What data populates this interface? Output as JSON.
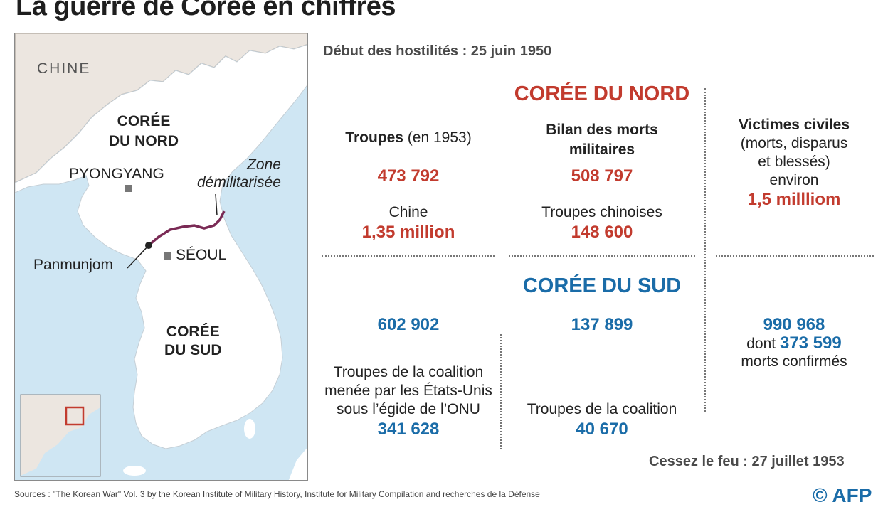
{
  "title": "La guerre de Corée en chiffres",
  "map": {
    "chine": "CHINE",
    "nord_line1": "CORÉE",
    "nord_line2": "DU NORD",
    "sud_line1": "CORÉE",
    "sud_line2": "DU SUD",
    "pyongyang": "PYONGYANG",
    "seoul": "SÉOUL",
    "panmunjom": "Panmunjom",
    "zone_line1": "Zone",
    "zone_line2": "démilitarisée"
  },
  "debut": "Début des hostilités : 25 juin 1950",
  "nord": {
    "heading": "CORÉE DU NORD",
    "troupes_label": "Troupes",
    "troupes_suffix": " (en 1953)",
    "troupes_value": "473 792",
    "chine_label": "Chine",
    "chine_value": "1,35 million",
    "bilan_line1": "Bilan des morts",
    "bilan_line2": "militaires",
    "bilan_value": "508 797",
    "chinoises_label": "Troupes chinoises",
    "chinoises_value": "148 600"
  },
  "victimes": {
    "heading": "Victimes civiles",
    "line2": "(morts, disparus",
    "line3": "et blessés)",
    "line4": "environ",
    "value": "1,5 millliom"
  },
  "sud": {
    "heading": "CORÉE DU SUD",
    "troupes_value": "602 902",
    "morts_value": "137 899",
    "civils_value": "990 968",
    "dont": "dont ",
    "dont_value": "373 599",
    "confirmes": "morts confirmés",
    "coalition_line1": "Troupes de la coalition",
    "coalition_line2": "menée par les États-Unis",
    "coalition_line3": "sous l’égide de l’ONU",
    "coalition_value": "341 628",
    "coalition_morts_label": "Troupes de la coalition",
    "coalition_morts_value": "40 670"
  },
  "cessez": "Cessez le feu : 27 juillet 1953",
  "source": "Sources : \"The Korean War\" Vol. 3 by the Korean Institute of Military History, Institute for Military Compilation and recherches de la Défense",
  "logo": "© AFP",
  "colors": {
    "red": "#c23b2e",
    "blue": "#1a6ca8",
    "sea": "#cfe6f3",
    "land": "#ffffff",
    "china": "#ece6e0",
    "dmz": "#7a2a55"
  }
}
